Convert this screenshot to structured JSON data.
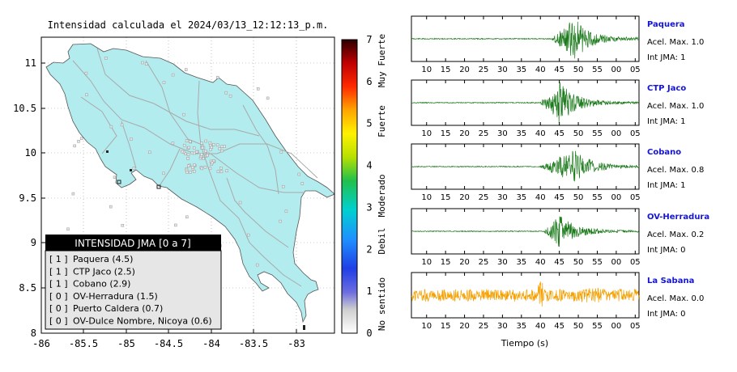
{
  "map": {
    "title": "Intensidad calculada el 2024/03/13_12:12:13_p.m.",
    "x_ticks": [
      "-86",
      "-85.5",
      "-85",
      "-84.5",
      "-84",
      "-83.5",
      "-83"
    ],
    "y_ticks": [
      "11",
      "10.5",
      "10",
      "9.5",
      "9",
      "8.5",
      "8"
    ],
    "land_color": "#b3ecee",
    "legend": {
      "title": "INTENSIDAD JMA [0 a 7]",
      "items": [
        {
          "jma": "[ 1 ]",
          "label": "Paquera (4.5)"
        },
        {
          "jma": "[ 1 ]",
          "label": "CTP Jaco (2.5)"
        },
        {
          "jma": "[ 1 ]",
          "label": "Cobano (2.9)"
        },
        {
          "jma": "[ 0 ]",
          "label": "OV-Herradura (1.5)"
        },
        {
          "jma": "[ 0 ]",
          "label": "Puerto Caldera (0.7)"
        },
        {
          "jma": "[ 0 ]",
          "label": "OV-Dulce Nombre, Nicoya (0.6)"
        }
      ]
    }
  },
  "colorbar": {
    "ticks": [
      "7",
      "6",
      "5",
      "4",
      "3",
      "2",
      "1",
      "0"
    ],
    "categories": [
      "Muy Fuerte",
      "Fuerte",
      "Moderado",
      "Debil",
      "No sentido"
    ]
  },
  "chart_data": [
    {
      "type": "line",
      "title": "Paquera",
      "xlabel": "",
      "x_ticks": [
        "10",
        "15",
        "20",
        "25",
        "30",
        "35",
        "40",
        "45",
        "50",
        "55",
        "00",
        "05"
      ],
      "series": [
        {
          "name": "Paquera",
          "color": "#1b7a1b",
          "onset": 43,
          "peak": 49,
          "amplitude": 1.0
        }
      ],
      "annotations": [
        "Acel. Max. 1.0",
        "Int JMA: 1"
      ]
    },
    {
      "type": "line",
      "title": "CTP Jaco",
      "xlabel": "",
      "x_ticks": [
        "10",
        "15",
        "20",
        "25",
        "30",
        "35",
        "40",
        "45",
        "50",
        "55",
        "00",
        "05"
      ],
      "series": [
        {
          "name": "CTP Jaco",
          "color": "#1b7a1b",
          "onset": 40,
          "peak": 45,
          "amplitude": 1.0
        }
      ],
      "annotations": [
        "Acel. Max. 1.0",
        "Int JMA: 1"
      ]
    },
    {
      "type": "line",
      "title": "Cobano",
      "xlabel": "",
      "x_ticks": [
        "10",
        "15",
        "20",
        "25",
        "30",
        "35",
        "40",
        "45",
        "50",
        "55",
        "00",
        "05"
      ],
      "series": [
        {
          "name": "Cobano",
          "color": "#1b7a1b",
          "onset": 40,
          "peak": 49,
          "amplitude": 0.8
        }
      ],
      "annotations": [
        "Acel. Max. 0.8",
        "Int JMA: 1"
      ]
    },
    {
      "type": "line",
      "title": "OV-Herradura",
      "xlabel": "",
      "x_ticks": [
        "10",
        "15",
        "20",
        "25",
        "30",
        "35",
        "40",
        "45",
        "50",
        "55",
        "00",
        "05"
      ],
      "series": [
        {
          "name": "OV-Herradura",
          "color": "#1b7a1b",
          "onset": 41,
          "peak": 45,
          "amplitude": 0.2
        }
      ],
      "annotations": [
        "Acel. Max. 0.2",
        "Int JMA: 0"
      ]
    },
    {
      "type": "line",
      "title": "La Sabana",
      "xlabel": "Tiempo (s)",
      "x_ticks": [
        "10",
        "15",
        "20",
        "25",
        "30",
        "35",
        "40",
        "45",
        "50",
        "55",
        "00",
        "05"
      ],
      "series": [
        {
          "name": "La Sabana",
          "color": "#f5a000",
          "onset": 7,
          "peak": 40,
          "amplitude": 0.0
        }
      ],
      "annotations": [
        "Acel. Max. 0.0",
        "Int JMA: 0"
      ]
    }
  ]
}
